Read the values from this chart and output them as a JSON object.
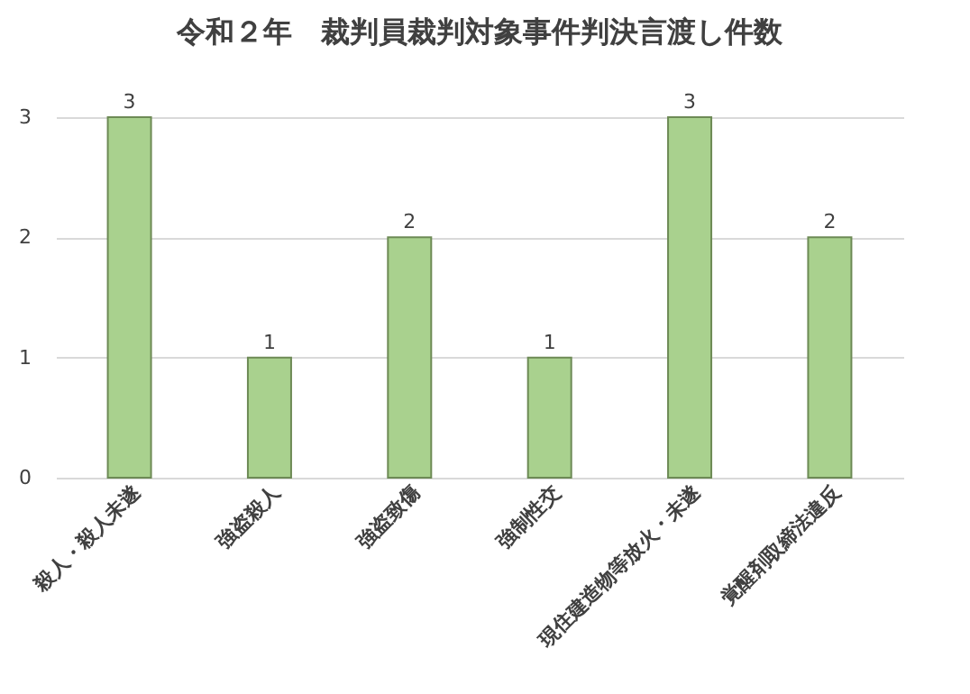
{
  "chart_data": {
    "type": "bar",
    "title": "令和２年　裁判員裁判対象事件判決言渡し件数",
    "categories": [
      "殺人・殺人未遂",
      "強盗殺人",
      "強盗致傷",
      "強制性交",
      "現住建造物等放火・未遂",
      "覚醒剤取締法違反"
    ],
    "values": [
      3,
      1,
      2,
      1,
      3,
      2
    ],
    "color": "#a9d18e",
    "ylim": [
      0,
      3
    ],
    "yticks": [
      0,
      1,
      2,
      3
    ],
    "grid": "y",
    "data_labels": true
  }
}
